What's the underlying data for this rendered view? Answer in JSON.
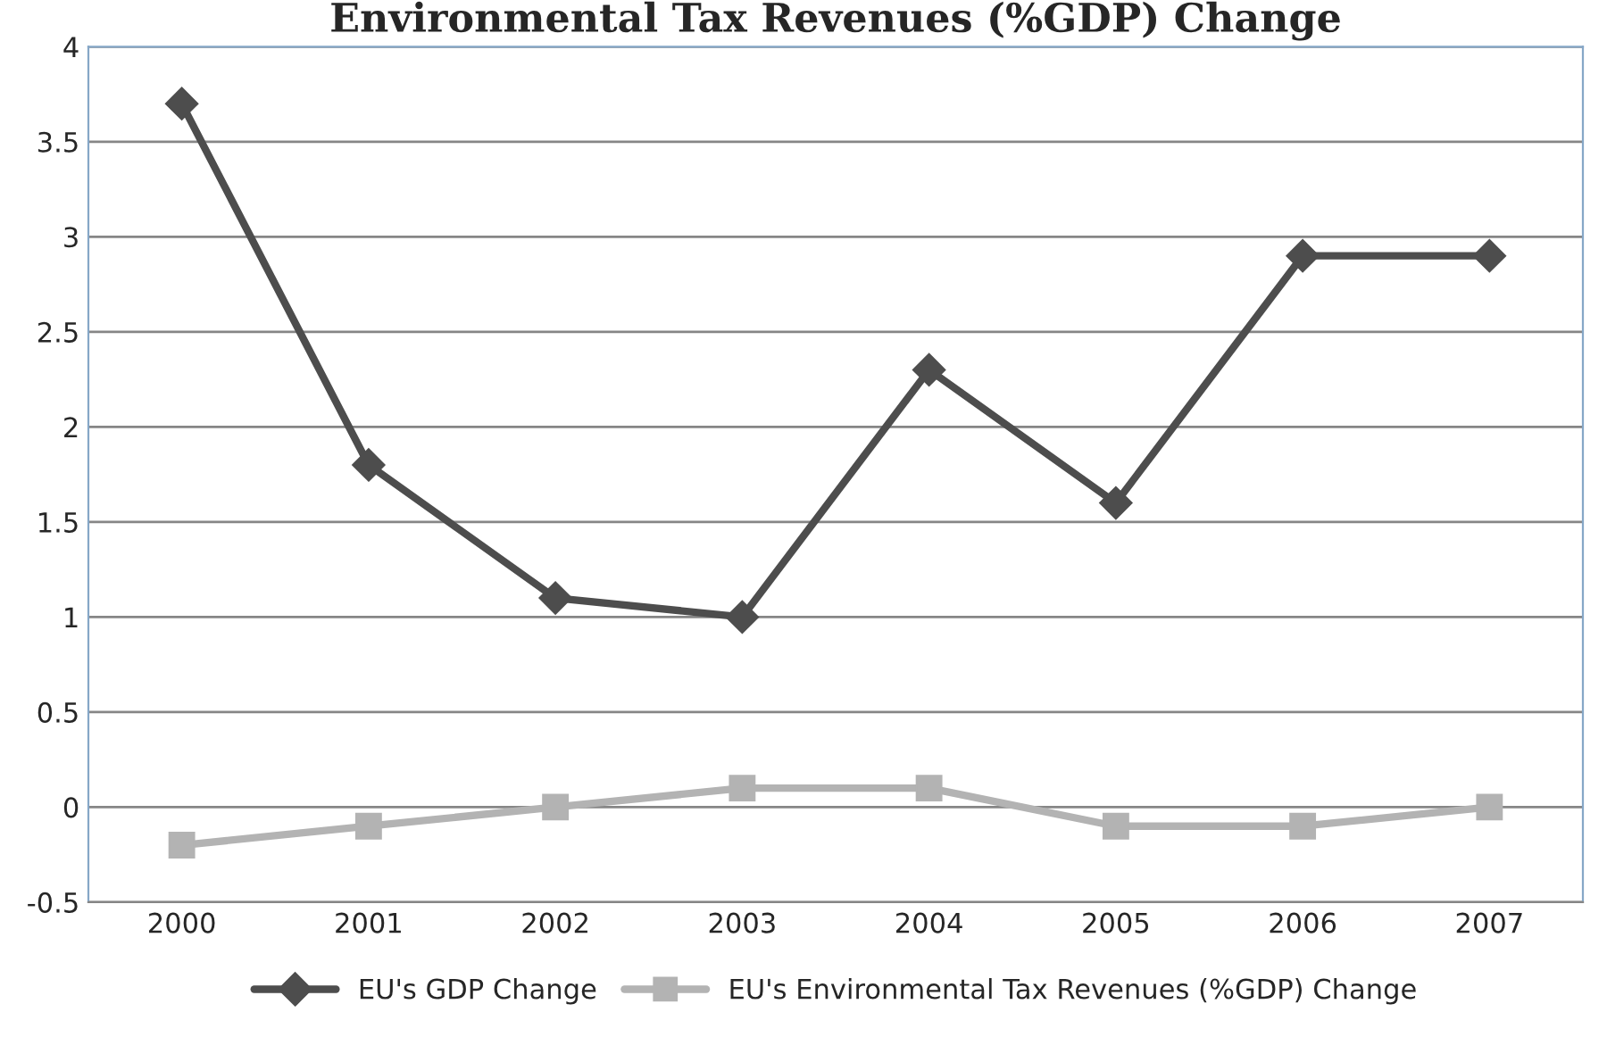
{
  "chart_data": {
    "type": "line",
    "title": "Environmental Tax Revenues (%GDP) Change",
    "categories": [
      "2000",
      "2001",
      "2002",
      "2003",
      "2004",
      "2005",
      "2006",
      "2007"
    ],
    "series": [
      {
        "name": "EU's GDP Change",
        "color": "#4d4d4d",
        "marker": "diamond",
        "values": [
          3.7,
          1.8,
          1.1,
          1.0,
          2.3,
          1.6,
          2.9,
          2.9
        ]
      },
      {
        "name": "EU's Environmental Tax Revenues (%GDP) Change",
        "color": "#b3b3b3",
        "marker": "square",
        "values": [
          -0.2,
          -0.1,
          0,
          0.1,
          0.1,
          -0.1,
          -0.1,
          0
        ]
      }
    ],
    "ylim": [
      -0.5,
      4
    ],
    "yticks": [
      -0.5,
      0,
      0.5,
      1,
      1.5,
      2,
      2.5,
      3,
      3.5,
      4
    ],
    "grid": "y",
    "legend": "bottom",
    "line_style": "solid"
  }
}
